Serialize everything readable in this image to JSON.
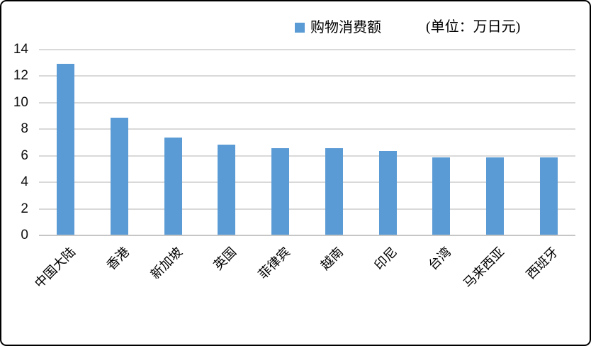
{
  "chart_data": {
    "type": "bar",
    "title": "",
    "legend": "购物消费额",
    "unit_label": "(单位：万日元)",
    "categories": [
      "中国大陆",
      "香港",
      "新加坡",
      "英国",
      "菲律宾",
      "越南",
      "印尼",
      "台湾",
      "马来西亚",
      "西班牙"
    ],
    "values": [
      12.9,
      8.8,
      7.3,
      6.8,
      6.5,
      6.5,
      6.3,
      5.8,
      5.8,
      5.8
    ],
    "xlabel": "",
    "ylabel": "",
    "ylim": [
      0,
      14
    ],
    "yticks": [
      0,
      2,
      4,
      6,
      8,
      10,
      12,
      14
    ],
    "grid": "horizontal",
    "legend_position": "top-center",
    "bar_color": "#5B9BD5",
    "gridline_color": "#D9D9D9",
    "axis_line_color": "#C6C6C6",
    "background_color": "#FFFFFF",
    "border_color": "#000000"
  }
}
